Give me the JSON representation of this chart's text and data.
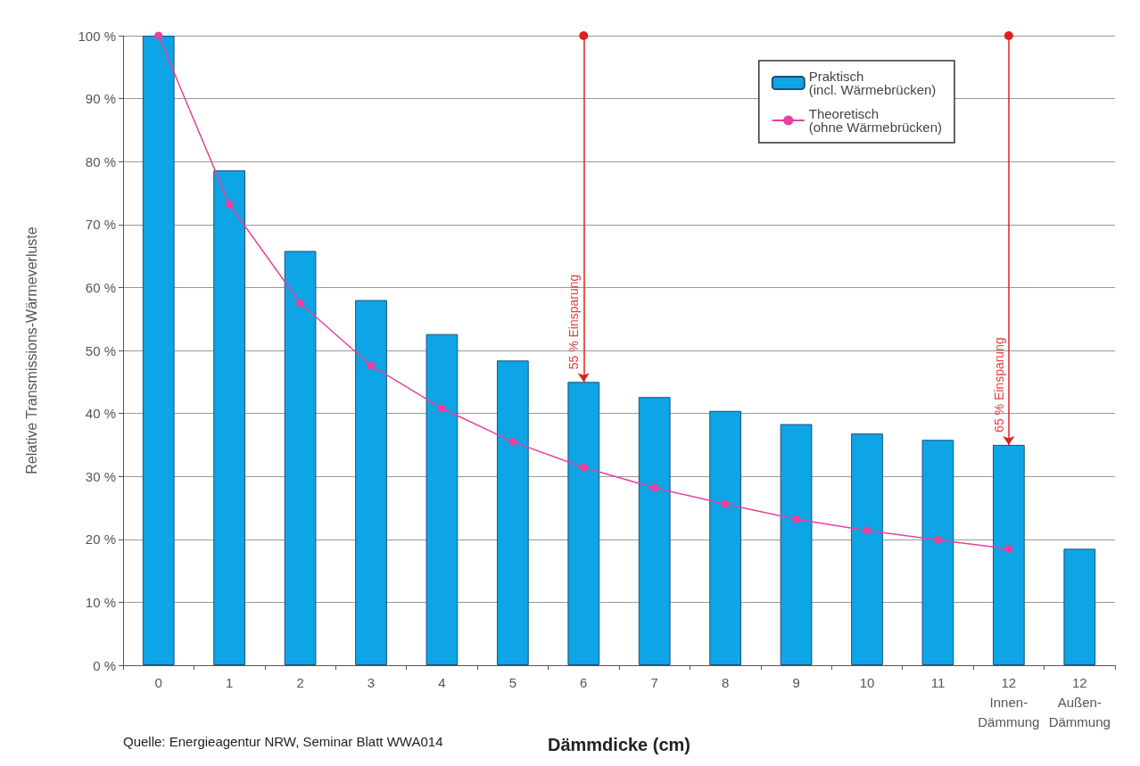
{
  "chart_data": {
    "type": "bar",
    "xlabel": "Dämmdicke (cm)",
    "ylabel": "Relative Transmissions-Wärmeverluste",
    "categories": [
      "0",
      "1",
      "2",
      "3",
      "4",
      "5",
      "6",
      "7",
      "8",
      "9",
      "10",
      "11",
      "12\nInnen-\nDämmung",
      "12\nAußen-\nDämmung"
    ],
    "series": [
      {
        "name": "Praktisch\n(incl. Wärmebrücken)",
        "color": "#0ea5e6",
        "values": [
          100,
          78.6,
          65.8,
          58.0,
          52.6,
          48.4,
          45.0,
          42.6,
          40.4,
          38.3,
          36.8,
          35.8,
          35.0,
          18.5
        ]
      },
      {
        "name": "Theoretisch\n(ohne Wärmebrücken)",
        "type": "line",
        "color": "#e8409c",
        "values": [
          100,
          73.2,
          57.5,
          47.6,
          40.8,
          35.5,
          31.4,
          28.2,
          25.6,
          23.2,
          21.4,
          19.9,
          18.5,
          null
        ]
      }
    ],
    "ylim": [
      0,
      100
    ],
    "yticks": [
      {
        "value": 0,
        "label": "0 %"
      },
      {
        "value": 10,
        "label": "10 %"
      },
      {
        "value": 20,
        "label": "20 %"
      },
      {
        "value": 30,
        "label": "30 %"
      },
      {
        "value": 40,
        "label": "40 %"
      },
      {
        "value": 50,
        "label": "50 %"
      },
      {
        "value": 60,
        "label": "60 %"
      },
      {
        "value": 70,
        "label": "70 %"
      },
      {
        "value": 80,
        "label": "80 %"
      },
      {
        "value": 90,
        "label": "90 %"
      },
      {
        "value": 100,
        "label": "100 %"
      }
    ],
    "grid": "y",
    "legend": "top right",
    "marker": "circle",
    "annotations": [
      {
        "text": "55 % Einsparung",
        "x": "6",
        "y": 45.0
      },
      {
        "text": "65 % Einsparung",
        "x": "12\nInnen-\nDämmung",
        "y": 35.0
      },
      "Quelle: Energieagentur NRW, Seminar Blatt WWA014"
    ]
  }
}
